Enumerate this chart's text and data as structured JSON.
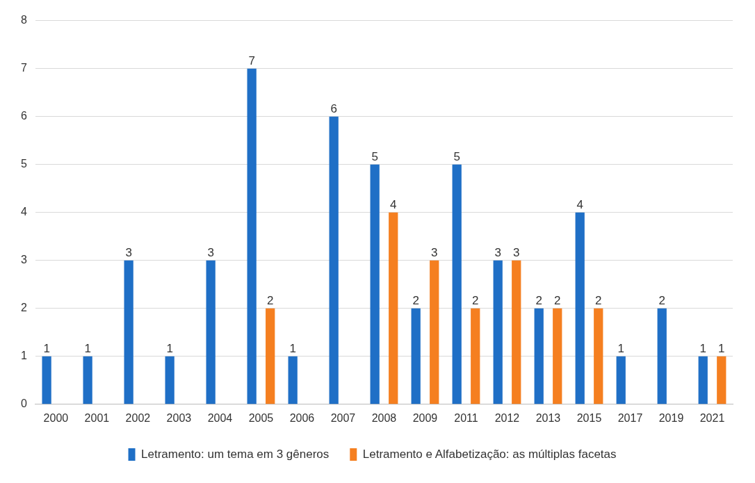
{
  "chart_data": {
    "type": "bar",
    "categories": [
      "2000",
      "2001",
      "2002",
      "2003",
      "2004",
      "2005",
      "2006",
      "2007",
      "2008",
      "2009",
      "2011",
      "2012",
      "2013",
      "2015",
      "2017",
      "2019",
      "2021"
    ],
    "series": [
      {
        "name": "Letramento: um tema em 3 gêneros",
        "color": "#1f6fc6",
        "values": [
          1,
          1,
          3,
          1,
          3,
          7,
          1,
          6,
          5,
          2,
          5,
          3,
          2,
          4,
          1,
          2,
          1
        ]
      },
      {
        "name": "Letramento e Alfabetização: as múltiplas facetas",
        "color": "#f57f20",
        "values": [
          null,
          null,
          null,
          null,
          null,
          2,
          null,
          null,
          4,
          3,
          2,
          3,
          2,
          2,
          null,
          null,
          1
        ]
      }
    ],
    "ylim": [
      0,
      8
    ],
    "yticks": [
      0,
      1,
      2,
      3,
      4,
      5,
      6,
      7,
      8
    ],
    "grid": "y",
    "legend": "bottom",
    "data_labels": true
  }
}
